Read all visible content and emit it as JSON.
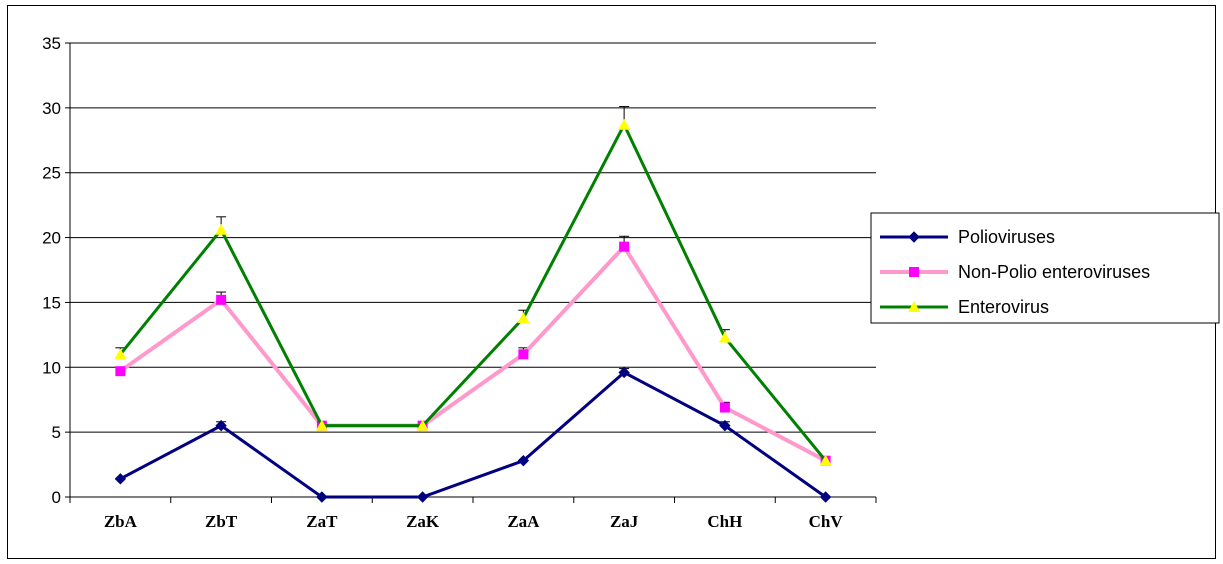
{
  "chart_data": {
    "type": "line",
    "title": "",
    "xlabel": "",
    "ylabel": "",
    "ylim": [
      0,
      35
    ],
    "yticks": [
      0,
      5,
      10,
      15,
      20,
      25,
      30,
      35
    ],
    "grid": "horizontal",
    "legend_position": "right",
    "categories": [
      "ZbA",
      "ZbT",
      "ZaT",
      "ZaK",
      "ZaA",
      "ZaJ",
      "ChH",
      "ChV"
    ],
    "series": [
      {
        "name": "Polioviruses",
        "color": "#000080",
        "marker": "diamond",
        "values": [
          1.4,
          5.5,
          0,
          0,
          2.8,
          9.6,
          5.5,
          0
        ],
        "error": [
          0,
          0.3,
          0,
          0,
          0,
          0.3,
          0.3,
          0
        ]
      },
      {
        "name": "Non-Polio enteroviruses",
        "color": "#FF99CC",
        "marker_color": "#FF00FF",
        "marker": "square",
        "values": [
          9.7,
          15.2,
          5.5,
          5.5,
          11.0,
          19.3,
          6.9,
          2.8
        ],
        "error": [
          0,
          0.6,
          0,
          0,
          0.5,
          0.8,
          0.4,
          0
        ]
      },
      {
        "name": "Enterovirus",
        "color": "#008000",
        "marker_color": "#FFFF00",
        "marker": "triangle",
        "values": [
          11.0,
          20.6,
          5.5,
          5.5,
          13.8,
          28.7,
          12.3,
          2.8
        ],
        "error": [
          0.5,
          1.0,
          0,
          0,
          0.6,
          1.4,
          0.6,
          0
        ]
      }
    ]
  }
}
